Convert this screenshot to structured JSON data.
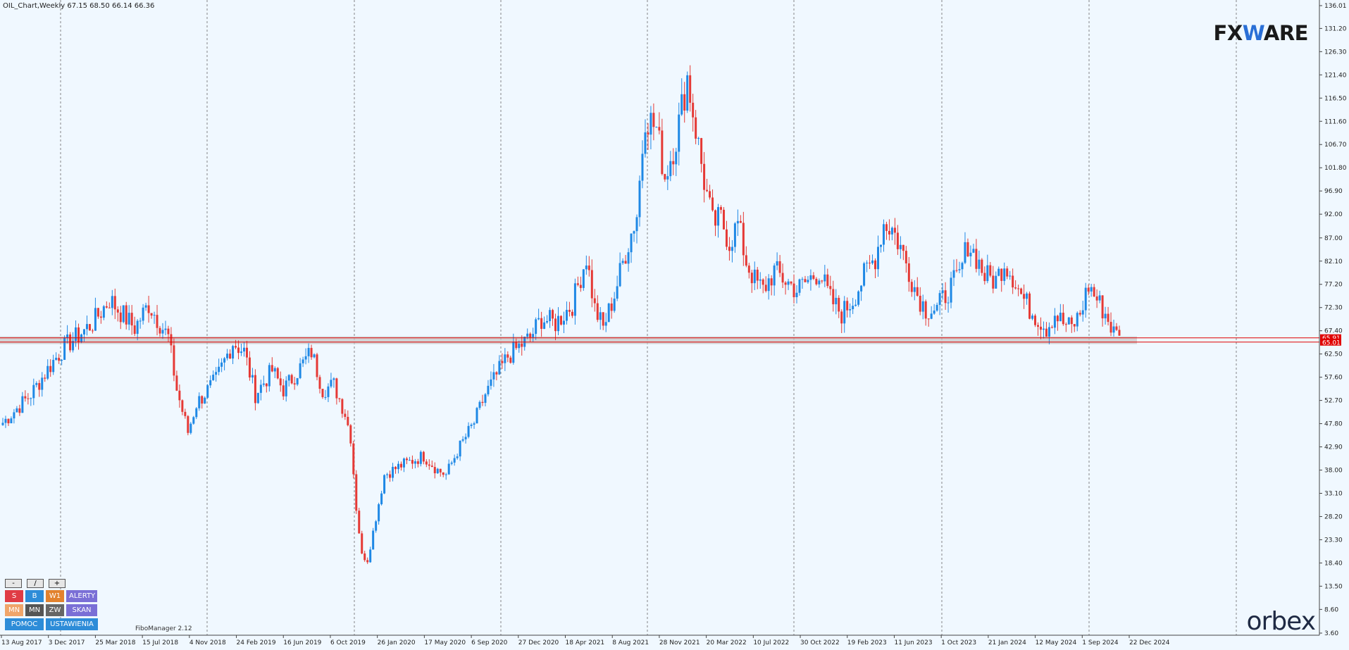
{
  "header": {
    "symbol_text": "OIL_Chart,Weekly",
    "ohlc_text": "67.15 68.50 66.14 66.36"
  },
  "logos": {
    "fxware_pre": "FX",
    "fxware_w": "W",
    "fxware_post": "ARE",
    "orbex": "orbex"
  },
  "fibo_label": "FiboManager 2.12",
  "panel": {
    "zoom_minus": "-",
    "zoom_slash": "/",
    "zoom_plus": "+",
    "row1": [
      "S",
      "B",
      "W1",
      "ALERTY"
    ],
    "row2": [
      "MN",
      "MN",
      "ZW",
      "SKAN"
    ],
    "row3": [
      "POMOC",
      "USTAWIENIA"
    ]
  },
  "colors": {
    "background": "#f0f8ff",
    "bull": "#1e88e5",
    "bear": "#e53935",
    "level": "#e00000",
    "zone": "#c8c8c8",
    "price_tag": "#e00000"
  },
  "chart_data": {
    "type": "candlestick",
    "symbol": "OIL",
    "timeframe": "Weekly",
    "ylim": [
      3.6,
      136.01
    ],
    "y_ticks": [
      136.01,
      131.2,
      126.3,
      121.4,
      116.5,
      111.6,
      106.7,
      101.8,
      96.9,
      92.0,
      87.0,
      82.1,
      77.2,
      72.3,
      67.4,
      62.5,
      57.6,
      52.7,
      47.8,
      42.9,
      38.0,
      33.1,
      28.2,
      23.3,
      18.4,
      13.5,
      8.6,
      3.6
    ],
    "x_labels": [
      "13 Aug 2017",
      "3 Dec 2017",
      "25 Mar 2018",
      "15 Jul 2018",
      "4 Nov 2018",
      "24 Feb 2019",
      "16 Jun 2019",
      "6 Oct 2019",
      "26 Jan 2020",
      "17 May 2020",
      "6 Sep 2020",
      "27 Dec 2020",
      "18 Apr 2021",
      "8 Aug 2021",
      "28 Nov 2021",
      "20 Mar 2022",
      "10 Jul 2022",
      "30 Oct 2022",
      "19 Feb 2023",
      "11 Jun 2023",
      "1 Oct 2023",
      "21 Jan 2024",
      "12 May 2024",
      "1 Sep 2024",
      "22 Dec 2024"
    ],
    "price_tags": [
      "65.91",
      "65.01"
    ],
    "horizontal_levels": [
      65.91,
      65.01
    ],
    "support_zone": [
      64.6,
      66.2
    ],
    "price_path": [
      [
        0,
        48
      ],
      [
        10,
        54
      ],
      [
        18,
        61
      ],
      [
        22,
        64
      ],
      [
        32,
        69
      ],
      [
        38,
        74
      ],
      [
        47,
        68
      ],
      [
        52,
        73
      ],
      [
        59,
        66
      ],
      [
        62,
        55
      ],
      [
        66,
        46
      ],
      [
        69,
        52
      ],
      [
        76,
        57
      ],
      [
        82,
        65
      ],
      [
        86,
        63
      ],
      [
        90,
        54
      ],
      [
        96,
        59
      ],
      [
        100,
        55
      ],
      [
        104,
        58
      ],
      [
        110,
        63
      ],
      [
        114,
        55
      ],
      [
        118,
        56
      ],
      [
        122,
        50
      ],
      [
        124,
        45
      ],
      [
        126,
        30
      ],
      [
        128,
        20
      ],
      [
        130,
        19
      ],
      [
        132,
        25
      ],
      [
        134,
        31
      ],
      [
        136,
        37
      ],
      [
        142,
        39
      ],
      [
        150,
        41
      ],
      [
        155,
        38
      ],
      [
        158,
        37
      ],
      [
        162,
        42
      ],
      [
        168,
        48
      ],
      [
        172,
        54
      ],
      [
        176,
        58
      ],
      [
        180,
        62
      ],
      [
        184,
        64
      ],
      [
        188,
        66
      ],
      [
        192,
        70
      ],
      [
        197,
        69
      ],
      [
        203,
        73
      ],
      [
        208,
        83
      ],
      [
        211,
        72
      ],
      [
        214,
        68
      ],
      [
        218,
        75
      ],
      [
        222,
        84
      ],
      [
        226,
        92
      ],
      [
        229,
        113
      ],
      [
        233,
        110
      ],
      [
        236,
        100
      ],
      [
        240,
        108
      ],
      [
        244,
        121
      ],
      [
        247,
        110
      ],
      [
        250,
        99
      ],
      [
        253,
        90
      ],
      [
        256,
        91
      ],
      [
        259,
        86
      ],
      [
        262,
        90
      ],
      [
        265,
        82
      ],
      [
        268,
        78
      ],
      [
        271,
        76
      ],
      [
        275,
        80
      ],
      [
        279,
        78
      ],
      [
        283,
        76
      ],
      [
        287,
        78
      ],
      [
        291,
        80
      ],
      [
        295,
        74
      ],
      [
        299,
        71
      ],
      [
        303,
        74
      ],
      [
        307,
        79
      ],
      [
        311,
        83
      ],
      [
        314,
        90
      ],
      [
        317,
        89
      ],
      [
        320,
        85
      ],
      [
        323,
        80
      ],
      [
        326,
        75
      ],
      [
        329,
        72
      ],
      [
        333,
        72
      ],
      [
        337,
        76
      ],
      [
        341,
        79
      ],
      [
        344,
        86
      ],
      [
        347,
        83
      ],
      [
        350,
        79
      ],
      [
        354,
        78
      ],
      [
        357,
        82
      ],
      [
        360,
        79
      ],
      [
        363,
        75
      ],
      [
        366,
        72
      ],
      [
        369,
        70
      ],
      [
        372,
        68
      ],
      [
        375,
        71
      ],
      [
        378,
        69
      ],
      [
        381,
        68
      ],
      [
        384,
        71
      ],
      [
        387,
        77
      ],
      [
        390,
        74
      ],
      [
        393,
        71
      ],
      [
        396,
        67
      ],
      [
        398,
        66.36
      ]
    ]
  }
}
